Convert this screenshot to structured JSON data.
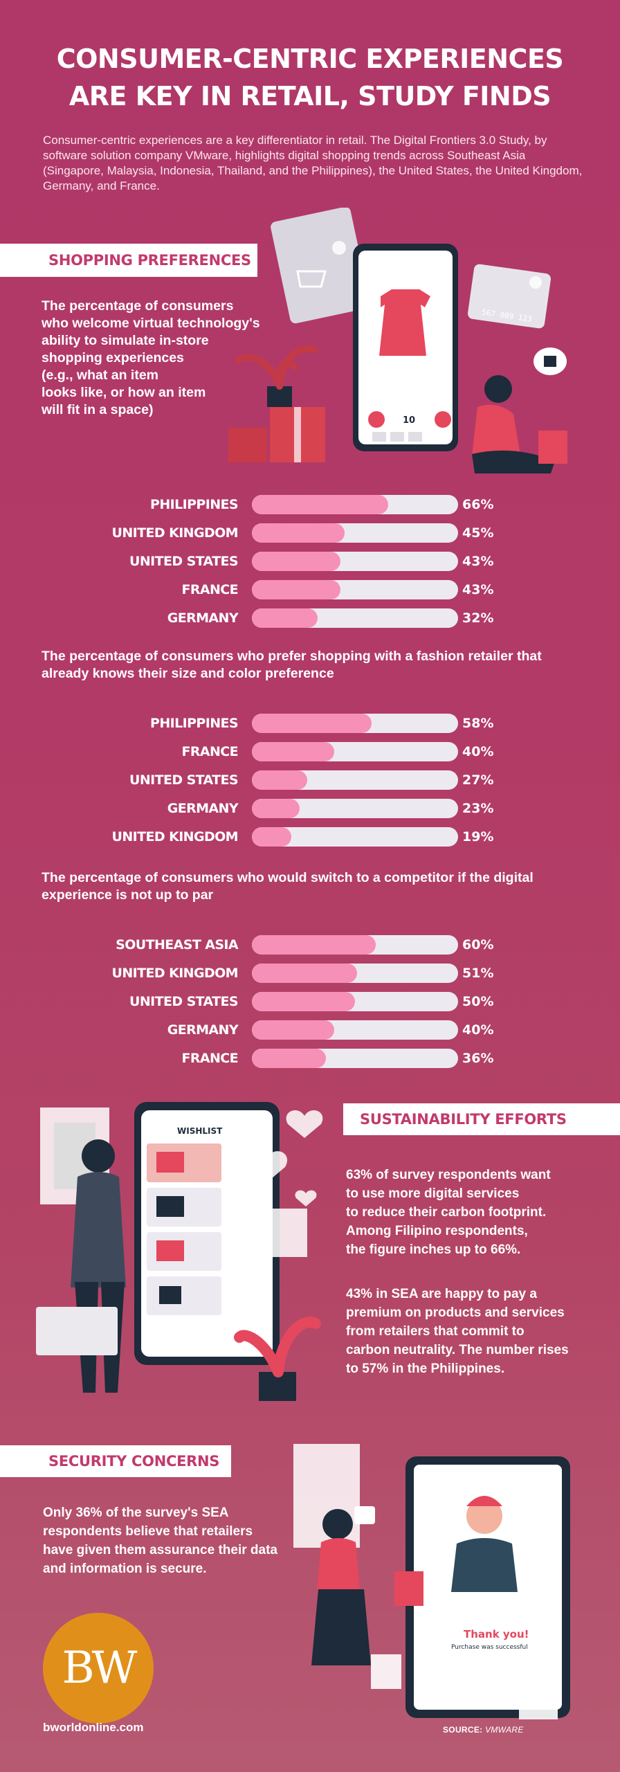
{
  "header": {
    "title_line1": "CONSUMER-CENTRIC EXPERIENCES",
    "title_line2": "ARE KEY IN RETAIL, STUDY FINDS",
    "intro": "Consumer-centric experiences are a key differentiator in retail. The Digital Frontiers 3.0 Study, by software solution company VMware, highlights digital shopping trends across Southeast Asia (Singapore, Malaysia, Indonesia, Thailand, and the Philippines), the United States, the United Kingdom, Germany, and France."
  },
  "sections": {
    "shopping": "SHOPPING PREFERENCES",
    "sustainability": "SUSTAINABILITY EFFORTS",
    "security": "SECURITY CONCERNS"
  },
  "chart_data": [
    {
      "type": "bar",
      "title": "The percentage of consumers who welcome virtual technology's ability to simulate in-store shopping experiences (e.g., what an item looks like, or how an item will fit in a space)",
      "categories": [
        "PHILIPPINES",
        "UNITED KINGDOM",
        "UNITED STATES",
        "FRANCE",
        "GERMANY"
      ],
      "values": [
        66,
        45,
        43,
        43,
        32
      ],
      "value_labels": [
        "66%",
        "45%",
        "43%",
        "43%",
        "32%"
      ],
      "ylim": [
        0,
        100
      ]
    },
    {
      "type": "bar",
      "title": "The percentage of consumers who prefer shopping with a fashion retailer that already knows their size and color preference",
      "categories": [
        "PHILIPPINES",
        "FRANCE",
        "UNITED STATES",
        "GERMANY",
        "UNITED KINGDOM"
      ],
      "values": [
        58,
        40,
        27,
        23,
        19
      ],
      "value_labels": [
        "58%",
        "40%",
        "27%",
        "23%",
        "19%"
      ],
      "ylim": [
        0,
        100
      ]
    },
    {
      "type": "bar",
      "title": "The percentage of consumers who would switch to a competitor if the digital experience is not up to par",
      "categories": [
        "SOUTHEAST ASIA",
        "UNITED KINGDOM",
        "UNITED STATES",
        "GERMANY",
        "FRANCE"
      ],
      "values": [
        60,
        51,
        50,
        40,
        36
      ],
      "value_labels": [
        "60%",
        "51%",
        "50%",
        "40%",
        "36%"
      ],
      "ylim": [
        0,
        100
      ]
    }
  ],
  "questions": {
    "q1_lines": [
      "The percentage of consumers",
      "who welcome virtual technology's",
      "ability to simulate in-store",
      "shopping experiences",
      "(e.g., what an item",
      "looks like, or how an item",
      "will fit in a space)"
    ],
    "q2_lines": [
      "The percentage of consumers who prefer shopping with a fashion retailer that",
      "already knows their size and color preference"
    ],
    "q3_lines": [
      "The percentage of consumers who would switch to a competitor if the digital",
      "experience is not up to par"
    ]
  },
  "sustainability": {
    "p1_lines": [
      "63% of survey respondents want",
      "to use more digital services",
      "to reduce their carbon footprint.",
      "Among Filipino respondents,",
      "the figure inches up to 66%."
    ],
    "p2_lines": [
      "43% in SEA are happy to pay a",
      "premium on products and services",
      "from retailers that commit to",
      "carbon neutrality. The number rises",
      "to 57% in the Philippines."
    ]
  },
  "security": {
    "p_lines": [
      "Only 36% of the survey's SEA",
      "respondents believe that retailers",
      "have given them assurance their data",
      "and information is secure."
    ]
  },
  "illustrations": {
    "phone1_price": "10",
    "card_number": "567 089 123",
    "wishlist_title": "WISHLIST",
    "thank_you": "Thank you!",
    "purchase_msg": "Purchase was successful"
  },
  "footer": {
    "logo": "BW",
    "url": "bworldonline.com",
    "source_label": "SOURCE:",
    "source_value": "VMWARE"
  },
  "colors": {
    "background": "#b03868",
    "bar_fill": "#f690b6",
    "bar_track": "#eceaf0",
    "banner_text": "#c23a6c",
    "logo_orange": "#e0901a"
  }
}
